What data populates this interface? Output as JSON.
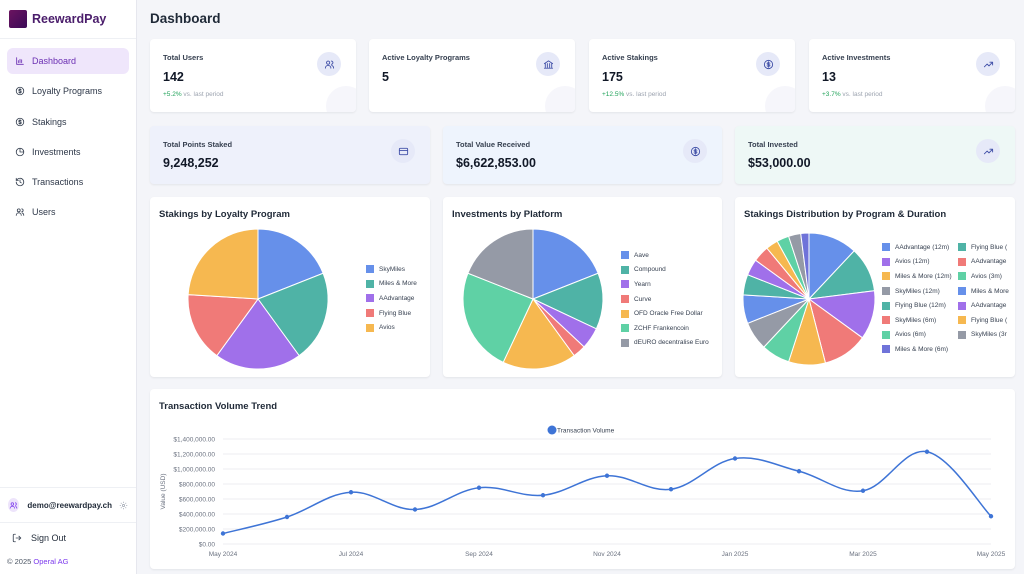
{
  "brand": {
    "name": "ReewardPay"
  },
  "sidebar": {
    "items": [
      {
        "label": "Dashboard",
        "icon": "bar-chart-icon",
        "active": true
      },
      {
        "label": "Loyalty Programs",
        "icon": "dollar-circle-icon",
        "active": false
      },
      {
        "label": "Stakings",
        "icon": "dollar-circle-icon",
        "active": false
      },
      {
        "label": "Investments",
        "icon": "pie-chart-icon",
        "active": false
      },
      {
        "label": "Transactions",
        "icon": "history-icon",
        "active": false
      },
      {
        "label": "Users",
        "icon": "users-icon",
        "active": false
      }
    ],
    "user_email": "demo@reewardpay.ch",
    "sign_out": "Sign Out",
    "copyright": "© 2025 ",
    "company": "Operal AG"
  },
  "header": {
    "title": "Dashboard"
  },
  "stats": [
    {
      "label": "Total Users",
      "value": "142",
      "change": "+5.2%",
      "change_suffix": " vs. last period",
      "icon": "users-icon"
    },
    {
      "label": "Active Loyalty Programs",
      "value": "5",
      "icon": "bank-icon"
    },
    {
      "label": "Active Stakings",
      "value": "175",
      "change": "+12.5%",
      "change_suffix": " vs. last period",
      "icon": "dollar-circle-icon"
    },
    {
      "label": "Active Investments",
      "value": "13",
      "change": "+3.7%",
      "change_suffix": " vs. last period",
      "icon": "trending-up-icon"
    }
  ],
  "totals": [
    {
      "label": "Total Points Staked",
      "value": "9,248,252",
      "icon": "card-icon",
      "bg": "#eef1fb"
    },
    {
      "label": "Total Value Received",
      "value": "$6,622,853.00",
      "icon": "dollar-circle-icon",
      "bg": "#eef4fd"
    },
    {
      "label": "Total Invested",
      "value": "$53,000.00",
      "icon": "trending-up-icon",
      "bg": "#eef8f6"
    }
  ],
  "colors": {
    "blue": "#6690ea",
    "teal": "#4fb3a6",
    "purple": "#a070ea",
    "red": "#f07a78",
    "orange": "#f6b850",
    "green": "#5fd1a5",
    "gray": "#959aa6",
    "line": "#3e74d6"
  },
  "chart_data": [
    {
      "type": "pie",
      "title": "Stakings by Loyalty Program",
      "labels": [
        "SkyMiles",
        "Miles & More",
        "AAdvantage",
        "Flying Blue",
        "Avios"
      ],
      "values": [
        19,
        21,
        20,
        16,
        24
      ],
      "colors": [
        "#6690ea",
        "#4fb3a6",
        "#a070ea",
        "#f07a78",
        "#f6b850"
      ],
      "legend": "right"
    },
    {
      "type": "pie",
      "title": "Investments by Platform",
      "labels": [
        "Aave",
        "Compound",
        "Yearn",
        "Curve",
        "OFD Oracle Free Dollar",
        "ZCHF Frankencoin",
        "dEURO decentralise Euro"
      ],
      "values": [
        19,
        13,
        5,
        3,
        17,
        24,
        19
      ],
      "colors": [
        "#6690ea",
        "#4fb3a6",
        "#a070ea",
        "#f07a78",
        "#f6b850",
        "#5fd1a5",
        "#959aa6"
      ],
      "legend": "right"
    },
    {
      "type": "pie",
      "title": "Stakings Distribution by Program & Duration",
      "labels": [
        "AAdvantage (12m)",
        "Flying Blue (",
        "Avios (12m)",
        "AAdvantage",
        "Miles & More (12m)",
        "Avios (3m)",
        "SkyMiles (12m)",
        "Miles & More",
        "Flying Blue (12m)",
        "AAdvantage",
        "SkyMiles (6m)",
        "Flying Blue (",
        "Avios (6m)",
        "SkyMiles (3r",
        "Miles & More (6m)"
      ],
      "values": [
        12,
        11,
        12,
        11,
        9,
        7,
        7,
        7,
        5,
        4,
        4,
        3,
        3,
        3,
        2
      ],
      "colors": [
        "#6690ea",
        "#4fb3a6",
        "#a070ea",
        "#f07a78",
        "#f6b850",
        "#5fd1a5",
        "#959aa6",
        "#6690ea",
        "#4fb3a6",
        "#a070ea",
        "#f07a78",
        "#f6b850",
        "#5fd1a5",
        "#959aa6",
        "#6f73d9"
      ],
      "legend": "right"
    },
    {
      "type": "line",
      "title": "Transaction Volume Trend",
      "series": [
        {
          "name": "Transaction Volume",
          "x": [
            "2024-05",
            "2024-06",
            "2024-07",
            "2024-08",
            "2024-09",
            "2024-10",
            "2024-11",
            "2024-12",
            "2025-01",
            "2025-02",
            "2025-03",
            "2025-04",
            "2025-05"
          ],
          "values": [
            140000,
            360000,
            690000,
            460000,
            750000,
            650000,
            910000,
            730000,
            1140000,
            970000,
            710000,
            1230000,
            370000
          ]
        }
      ],
      "x_ticks": [
        "May 2024",
        "Jul 2024",
        "Sep 2024",
        "Nov 2024",
        "Jan 2025",
        "Mar 2025",
        "May 2025"
      ],
      "y_ticks": [
        "$0.00",
        "$200,000.00",
        "$400,000.00",
        "$600,000.00",
        "$800,000.00",
        "$1,000,000.00",
        "$1,200,000.00",
        "$1,400,000.00"
      ],
      "ylabel": "Value (USD)",
      "ylim": [
        0,
        1400000
      ],
      "grid": true,
      "legend": "top-center"
    }
  ]
}
